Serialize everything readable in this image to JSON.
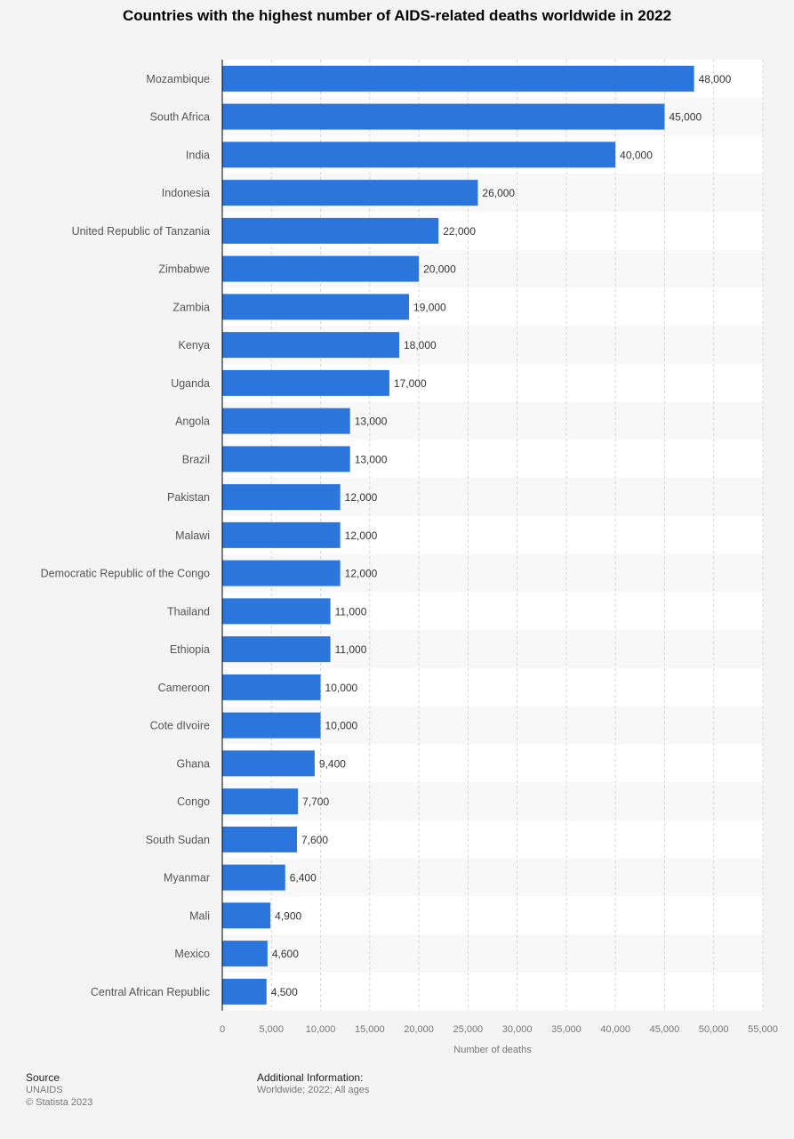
{
  "title": "Countries with the highest number of AIDS-related deaths worldwide in 2022",
  "footer": {
    "source_heading": "Source",
    "source_name": "UNAIDS",
    "copyright": "© Statista 2023",
    "additional_heading": "Additional Information:",
    "additional_text": "Worldwide; 2022; All ages"
  },
  "colors": {
    "bar": "#2a76dd",
    "band": "#f8f8f8",
    "band_alt": "#ffffff",
    "grid": "#d4d4d4",
    "axis": "#000000"
  },
  "chart_data": {
    "type": "bar",
    "orientation": "horizontal",
    "title": "Countries with the highest number of AIDS-related deaths worldwide in 2022",
    "xlabel": "Number of deaths",
    "ylabel": "",
    "xlim": [
      0,
      55000
    ],
    "grid": true,
    "xticks": [
      0,
      5000,
      10000,
      15000,
      20000,
      25000,
      30000,
      35000,
      40000,
      45000,
      50000,
      55000
    ],
    "xtick_labels": [
      "0",
      "5,000",
      "10,000",
      "15,000",
      "20,000",
      "25,000",
      "30,000",
      "35,000",
      "40,000",
      "45,000",
      "50,000",
      "55,000"
    ],
    "categories": [
      "Mozambique",
      "South Africa",
      "India",
      "Indonesia",
      "United Republic of Tanzania",
      "Zimbabwe",
      "Zambia",
      "Kenya",
      "Uganda",
      "Angola",
      "Brazil",
      "Pakistan",
      "Malawi",
      "Democratic Republic of the Congo",
      "Thailand",
      "Ethiopia",
      "Cameroon",
      "Cote dIvoire",
      "Ghana",
      "Congo",
      "South Sudan",
      "Myanmar",
      "Mali",
      "Mexico",
      "Central African Republic"
    ],
    "values": [
      48000,
      45000,
      40000,
      26000,
      22000,
      20000,
      19000,
      18000,
      17000,
      13000,
      13000,
      12000,
      12000,
      12000,
      11000,
      11000,
      10000,
      10000,
      9400,
      7700,
      7600,
      6400,
      4900,
      4600,
      4500
    ],
    "value_labels": [
      "48,000",
      "45,000",
      "40,000",
      "26,000",
      "22,000",
      "20,000",
      "19,000",
      "18,000",
      "17,000",
      "13,000",
      "13,000",
      "12,000",
      "12,000",
      "12,000",
      "11,000",
      "11,000",
      "10,000",
      "10,000",
      "9,400",
      "7,700",
      "7,600",
      "6,400",
      "4,900",
      "4,600",
      "4,500"
    ]
  }
}
